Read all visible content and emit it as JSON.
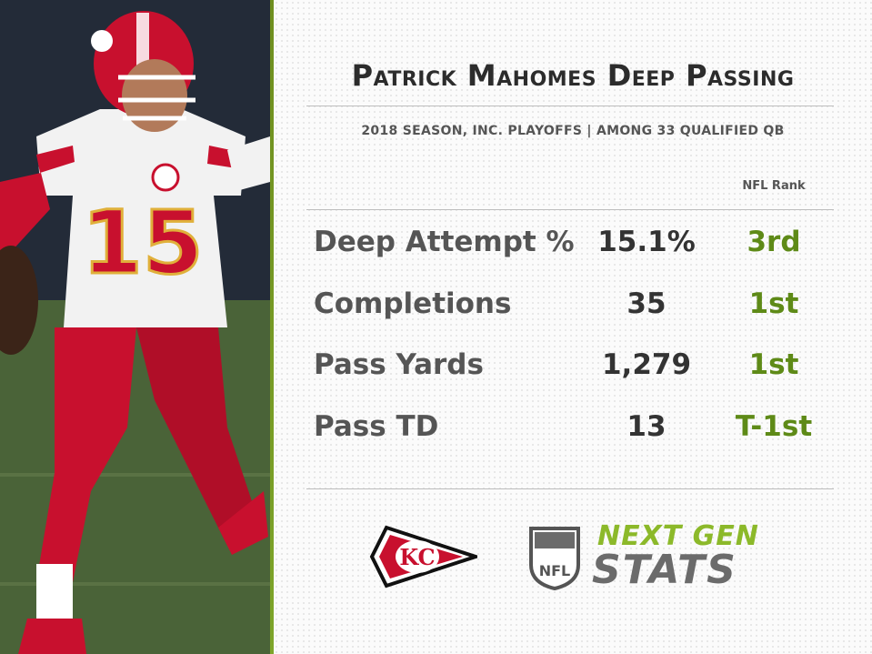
{
  "header": {
    "title": "Patrick Mahomes Deep Passing",
    "subtitle": "2018 SEASON, INC. PLAYOFFS  |  AMONG 33 QUALIFIED QB",
    "rank_header": "NFL Rank"
  },
  "stats": [
    {
      "label": "Deep Attempt %",
      "value": "15.1%",
      "rank": "3rd"
    },
    {
      "label": "Completions",
      "value": "35",
      "rank": "1st"
    },
    {
      "label": "Pass Yards",
      "value": "1,279",
      "rank": "1st"
    },
    {
      "label": "Pass TD",
      "value": "13",
      "rank": "T-1st"
    }
  ],
  "player": {
    "jersey_number": "15"
  },
  "logos": {
    "team": "KC",
    "league": "NFL",
    "brand_line1": "NEXT GEN",
    "brand_line2": "STATS"
  },
  "colors": {
    "accent_green": "#5e8a17",
    "chiefs_red": "#c8102e",
    "text_dark": "#2c2c2c"
  }
}
